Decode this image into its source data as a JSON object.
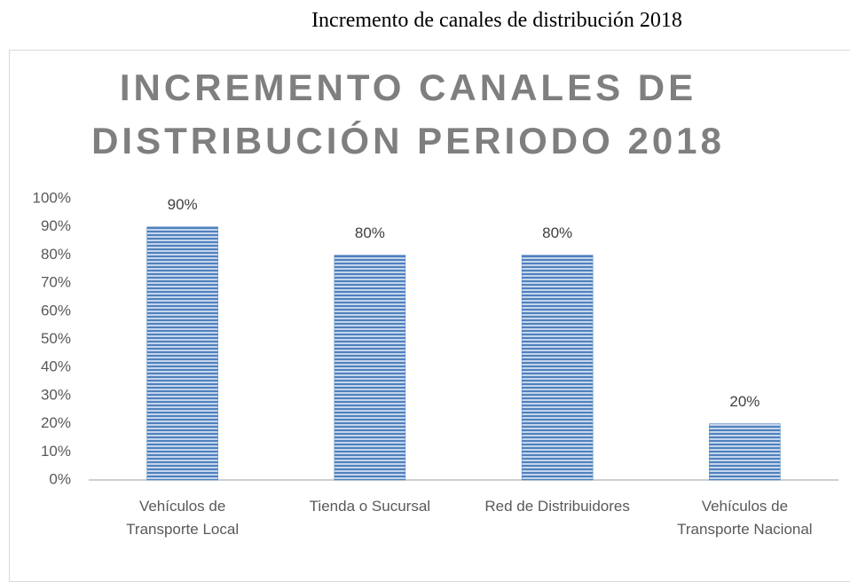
{
  "caption": "Incremento de canales de distribución 2018",
  "chart_data": {
    "type": "bar",
    "title": [
      "INCREMENTO CANALES DE",
      "DISTRIBUCIÓN PERIODO 2018"
    ],
    "categories": [
      "Vehículos de Transporte Local",
      "Tienda o Sucursal",
      "Red de Distribuidores",
      "Vehículos de Transporte Nacional"
    ],
    "values": [
      90,
      80,
      80,
      20
    ],
    "value_labels": [
      "90%",
      "80%",
      "80%",
      "20%"
    ],
    "color": "#4f81bd",
    "ylim": [
      0,
      100
    ],
    "yticks": [
      {
        "value": 0,
        "label": "0%"
      },
      {
        "value": 10,
        "label": "10%"
      },
      {
        "value": 20,
        "label": "20%"
      },
      {
        "value": 30,
        "label": "30%"
      },
      {
        "value": 40,
        "label": "40%"
      },
      {
        "value": 50,
        "label": "50%"
      },
      {
        "value": 60,
        "label": "60%"
      },
      {
        "value": 70,
        "label": "70%"
      },
      {
        "value": 80,
        "label": "80%"
      },
      {
        "value": 90,
        "label": "90%"
      },
      {
        "value": 100,
        "label": "100%"
      }
    ],
    "grid": false
  }
}
